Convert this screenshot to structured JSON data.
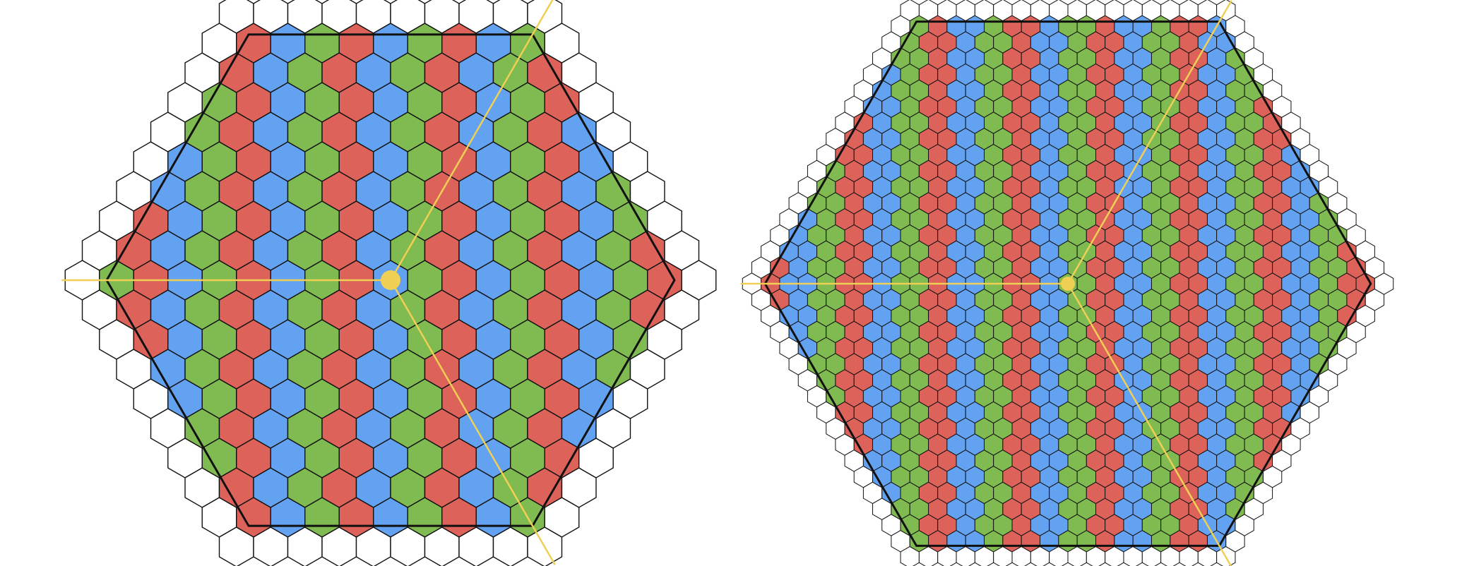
{
  "colors": {
    "red": "#dd625a",
    "blue": "#63a2f0",
    "green": "#7fbb50",
    "empty": "#ffffff",
    "cell_stroke": "#111111",
    "outline": "#111111",
    "axis": "#f0cf55",
    "center_dot": "#f0cf55",
    "background": "#ffffff"
  },
  "panels": [
    {
      "id": "left",
      "cell_scale": "large",
      "color_order": [
        "red",
        "blue",
        "green"
      ],
      "band_direction": "diagonal",
      "boundary_ring": "empty",
      "has_center_marker": true,
      "has_three_axes": true,
      "has_outline": true
    },
    {
      "id": "right",
      "cell_scale": "small",
      "color_order": [
        "red",
        "blue",
        "green"
      ],
      "band_direction": "diagonal",
      "boundary_ring": "empty",
      "has_center_marker": true,
      "has_three_axes": true,
      "has_outline": true
    }
  ]
}
